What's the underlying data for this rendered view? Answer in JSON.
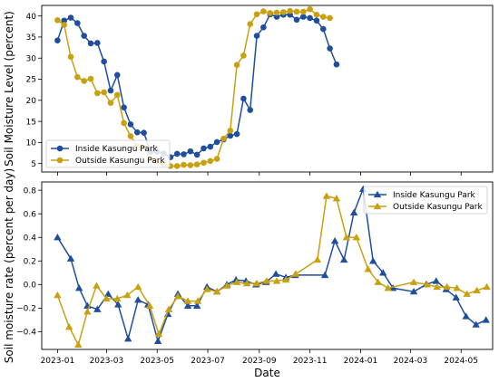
{
  "colors": {
    "inside": "#1f4e9c",
    "outside": "#c8a010"
  },
  "chart_data": [
    {
      "type": "line",
      "ylabel": "Soil Moisture Level (percent)",
      "ylim": [
        3,
        42.5
      ],
      "yticks": [
        5,
        10,
        15,
        20,
        25,
        30,
        35,
        40
      ],
      "xlim": [
        "2022-12-13",
        "2024-06-08"
      ],
      "legend_position": "lower-left",
      "marker": "circle",
      "series": [
        {
          "name": "Inside Kasungu Park",
          "color_key": "inside",
          "points": [
            [
              "2023-01-01",
              34.2
            ],
            [
              "2023-01-09",
              38.9
            ],
            [
              "2023-01-17",
              39.6
            ],
            [
              "2023-01-25",
              38.3
            ],
            [
              "2023-02-02",
              35.3
            ],
            [
              "2023-02-10",
              33.5
            ],
            [
              "2023-02-18",
              33.6
            ],
            [
              "2023-02-26",
              29.2
            ],
            [
              "2023-03-06",
              22.3
            ],
            [
              "2023-03-14",
              26.0
            ],
            [
              "2023-03-22",
              18.3
            ],
            [
              "2023-03-30",
              14.3
            ],
            [
              "2023-04-07",
              12.4
            ],
            [
              "2023-04-15",
              12.3
            ],
            [
              "2023-04-23",
              7.8
            ],
            [
              "2023-05-01",
              7.8
            ],
            [
              "2023-05-09",
              7.4
            ],
            [
              "2023-05-17",
              6.5
            ],
            [
              "2023-05-25",
              7.3
            ],
            [
              "2023-06-02",
              7.2
            ],
            [
              "2023-06-10",
              7.9
            ],
            [
              "2023-06-18",
              7.1
            ],
            [
              "2023-06-26",
              8.6
            ],
            [
              "2023-07-04",
              9.0
            ],
            [
              "2023-07-12",
              10.1
            ],
            [
              "2023-07-20",
              10.7
            ],
            [
              "2023-07-28",
              11.6
            ],
            [
              "2023-08-05",
              12.0
            ],
            [
              "2023-08-13",
              20.4
            ],
            [
              "2023-08-21",
              17.7
            ],
            [
              "2023-08-29",
              35.3
            ],
            [
              "2023-09-06",
              37.3
            ],
            [
              "2023-09-14",
              40.4
            ],
            [
              "2023-09-22",
              39.8
            ],
            [
              "2023-09-30",
              40.3
            ],
            [
              "2023-10-08",
              40.3
            ],
            [
              "2023-10-16",
              39.1
            ],
            [
              "2023-10-24",
              39.8
            ],
            [
              "2023-11-01",
              39.5
            ],
            [
              "2023-11-09",
              38.9
            ],
            [
              "2023-11-17",
              36.9
            ],
            [
              "2023-11-25",
              32.3
            ],
            [
              "2023-12-03",
              28.5
            ]
          ]
        },
        {
          "name": "Outside Kasungu Park",
          "color_key": "outside",
          "points": [
            [
              "2023-01-01",
              39.0
            ],
            [
              "2023-01-09",
              37.9
            ],
            [
              "2023-01-17",
              30.3
            ],
            [
              "2023-01-25",
              25.5
            ],
            [
              "2023-02-02",
              24.6
            ],
            [
              "2023-02-10",
              25.1
            ],
            [
              "2023-02-18",
              21.7
            ],
            [
              "2023-02-26",
              21.9
            ],
            [
              "2023-03-06",
              19.4
            ],
            [
              "2023-03-14",
              21.3
            ],
            [
              "2023-03-22",
              14.6
            ],
            [
              "2023-03-30",
              11.5
            ],
            [
              "2023-04-07",
              9.1
            ],
            [
              "2023-04-15",
              8.8
            ],
            [
              "2023-04-23",
              6.2
            ],
            [
              "2023-05-01",
              5.4
            ],
            [
              "2023-05-09",
              4.9
            ],
            [
              "2023-05-17",
              4.4
            ],
            [
              "2023-05-25",
              4.4
            ],
            [
              "2023-06-02",
              4.7
            ],
            [
              "2023-06-10",
              4.6
            ],
            [
              "2023-06-18",
              4.8
            ],
            [
              "2023-06-26",
              5.2
            ],
            [
              "2023-07-04",
              5.6
            ],
            [
              "2023-07-12",
              6.1
            ],
            [
              "2023-07-20",
              10.9
            ],
            [
              "2023-07-28",
              12.8
            ],
            [
              "2023-08-05",
              28.4
            ],
            [
              "2023-08-13",
              30.6
            ],
            [
              "2023-08-21",
              38.1
            ],
            [
              "2023-08-29",
              40.4
            ],
            [
              "2023-09-06",
              41.1
            ],
            [
              "2023-09-14",
              40.7
            ],
            [
              "2023-09-22",
              40.8
            ],
            [
              "2023-09-30",
              40.9
            ],
            [
              "2023-10-08",
              41.2
            ],
            [
              "2023-10-16",
              41.0
            ],
            [
              "2023-10-24",
              41.0
            ],
            [
              "2023-11-01",
              41.6
            ],
            [
              "2023-11-09",
              40.3
            ],
            [
              "2023-11-17",
              39.8
            ],
            [
              "2023-11-25",
              39.5
            ]
          ]
        }
      ]
    },
    {
      "type": "line",
      "xlabel": "Date",
      "ylabel": "Soil moisture rate (percent per day)",
      "ylim": [
        -0.55,
        0.87
      ],
      "yticks": [
        -0.4,
        -0.2,
        0.0,
        0.2,
        0.4,
        0.6,
        0.8
      ],
      "ytick_labels": [
        "−0.4",
        "−0.2",
        "0.0",
        "0.2",
        "0.4",
        "0.6",
        "0.8"
      ],
      "xlim": [
        "2022-12-13",
        "2024-06-08"
      ],
      "xticks": [
        "2023-01-01",
        "2023-03-01",
        "2023-05-01",
        "2023-07-01",
        "2023-09-01",
        "2023-11-01",
        "2024-01-01",
        "2024-03-01",
        "2024-05-01"
      ],
      "xtick_labels": [
        "2023-01",
        "2023-03",
        "2023-05",
        "2023-07",
        "2023-09",
        "2023-11",
        "2024-01",
        "2024-03",
        "2024-05"
      ],
      "legend_position": "top-right",
      "marker": "triangle",
      "series": [
        {
          "name": "Inside Kasungu Park",
          "color_key": "inside",
          "points": [
            [
              "2023-01-01",
              0.4
            ],
            [
              "2023-01-17",
              0.22
            ],
            [
              "2023-01-27",
              -0.03
            ],
            [
              "2023-02-06",
              -0.18
            ],
            [
              "2023-02-18",
              -0.21
            ],
            [
              "2023-03-03",
              -0.08
            ],
            [
              "2023-03-15",
              -0.17
            ],
            [
              "2023-03-27",
              -0.46
            ],
            [
              "2023-04-08",
              -0.13
            ],
            [
              "2023-04-20",
              -0.17
            ],
            [
              "2023-05-02",
              -0.48
            ],
            [
              "2023-05-14",
              -0.25
            ],
            [
              "2023-05-26",
              -0.08
            ],
            [
              "2023-06-07",
              -0.18
            ],
            [
              "2023-06-18",
              -0.18
            ],
            [
              "2023-06-30",
              -0.02
            ],
            [
              "2023-07-12",
              -0.06
            ],
            [
              "2023-07-24",
              0.0
            ],
            [
              "2023-08-04",
              0.04
            ],
            [
              "2023-08-16",
              0.03
            ],
            [
              "2023-08-28",
              0.0
            ],
            [
              "2023-09-09",
              0.02
            ],
            [
              "2023-09-21",
              0.09
            ],
            [
              "2023-10-03",
              0.06
            ],
            [
              "2023-10-14",
              0.08
            ],
            [
              "2023-11-19",
              0.08
            ],
            [
              "2023-12-01",
              0.37
            ],
            [
              "2023-12-12",
              0.21
            ],
            [
              "2023-12-24",
              0.61
            ],
            [
              "2024-01-04",
              0.81
            ],
            [
              "2024-01-16",
              0.2
            ],
            [
              "2024-01-28",
              0.1
            ],
            [
              "2024-02-09",
              -0.03
            ],
            [
              "2024-03-05",
              -0.06
            ],
            [
              "2024-03-20",
              0.0
            ],
            [
              "2024-04-01",
              0.03
            ],
            [
              "2024-04-13",
              -0.04
            ],
            [
              "2024-04-25",
              -0.11
            ],
            [
              "2024-05-07",
              -0.27
            ],
            [
              "2024-05-19",
              -0.34
            ],
            [
              "2024-05-31",
              -0.3
            ]
          ]
        },
        {
          "name": "Outside Kasungu Park",
          "color_key": "outside",
          "points": [
            [
              "2023-01-01",
              -0.09
            ],
            [
              "2023-01-15",
              -0.36
            ],
            [
              "2023-01-26",
              -0.51
            ],
            [
              "2023-02-06",
              -0.23
            ],
            [
              "2023-02-17",
              -0.01
            ],
            [
              "2023-03-01",
              -0.12
            ],
            [
              "2023-03-14",
              -0.12
            ],
            [
              "2023-03-26",
              -0.09
            ],
            [
              "2023-04-08",
              -0.02
            ],
            [
              "2023-04-22",
              -0.18
            ],
            [
              "2023-05-03",
              -0.42
            ],
            [
              "2023-05-15",
              -0.21
            ],
            [
              "2023-05-26",
              -0.1
            ],
            [
              "2023-06-07",
              -0.14
            ],
            [
              "2023-06-19",
              -0.14
            ],
            [
              "2023-06-30",
              -0.04
            ],
            [
              "2023-07-12",
              -0.06
            ],
            [
              "2023-07-24",
              -0.01
            ],
            [
              "2023-08-05",
              0.02
            ],
            [
              "2023-08-17",
              0.01
            ],
            [
              "2023-08-29",
              0.01
            ],
            [
              "2023-09-10",
              0.03
            ],
            [
              "2023-09-22",
              0.03
            ],
            [
              "2023-10-03",
              0.04
            ],
            [
              "2023-10-15",
              0.09
            ],
            [
              "2023-11-10",
              0.21
            ],
            [
              "2023-11-21",
              0.75
            ],
            [
              "2023-12-03",
              0.73
            ],
            [
              "2023-12-15",
              0.4
            ],
            [
              "2023-12-27",
              0.4
            ],
            [
              "2024-01-10",
              0.13
            ],
            [
              "2024-01-22",
              0.02
            ],
            [
              "2024-02-03",
              -0.03
            ],
            [
              "2024-03-05",
              0.02
            ],
            [
              "2024-03-21",
              0.0
            ],
            [
              "2024-04-02",
              -0.02
            ],
            [
              "2024-04-14",
              -0.02
            ],
            [
              "2024-04-26",
              -0.03
            ],
            [
              "2024-05-08",
              -0.08
            ],
            [
              "2024-05-20",
              -0.05
            ],
            [
              "2024-06-01",
              -0.02
            ]
          ]
        }
      ]
    }
  ]
}
